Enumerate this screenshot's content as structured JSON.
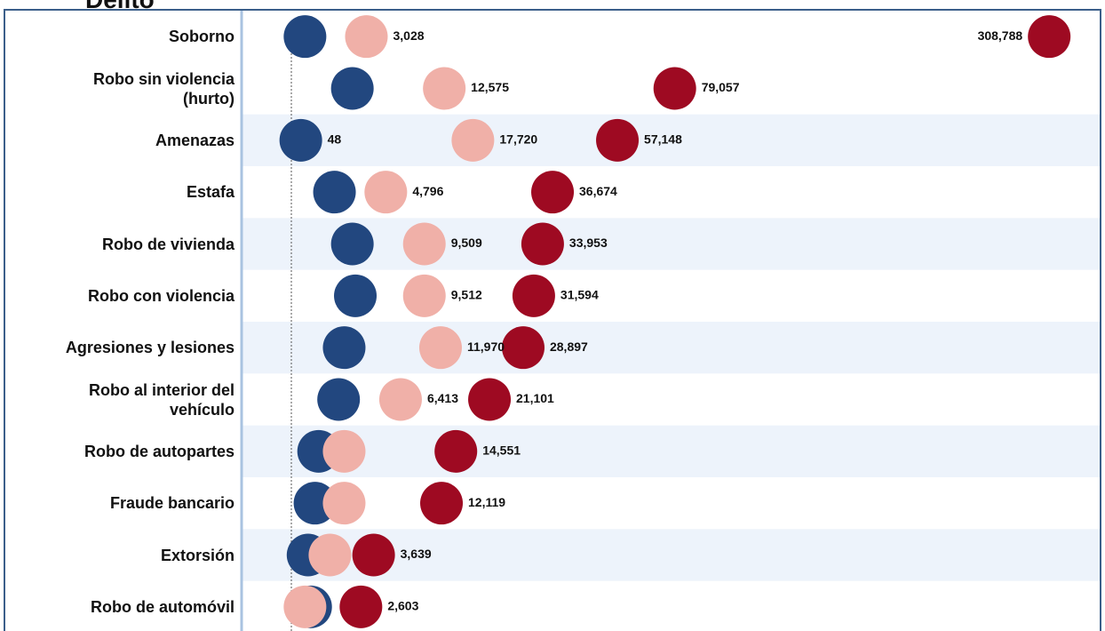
{
  "chart_data": {
    "type": "dot",
    "title": "Delito",
    "categories": [
      "Soborno",
      "Robo sin violencia\n(hurto)",
      "Amenazas",
      "Estafa",
      "Robo de vivienda",
      "Robo con violencia",
      "Agresiones y lesiones",
      "Robo al interior del\nvehículo",
      "Robo de autopartes",
      "Fraude bancario",
      "Extorsión",
      "Robo de automóvil"
    ],
    "x_scale": "sqrt",
    "xlim": [
      0,
      330000
    ],
    "series": [
      {
        "color": "#22477f",
        "values": [
          100,
          2000,
          48,
          1000,
          2000,
          2200,
          1500,
          1200,
          400,
          300,
          150,
          200
        ],
        "value_labels": [
          null,
          null,
          "48",
          null,
          null,
          null,
          null,
          null,
          null,
          null,
          null,
          null
        ]
      },
      {
        "color": "#f0b0a8",
        "values": [
          3028,
          12575,
          17720,
          4796,
          9509,
          9512,
          11970,
          6413,
          1500,
          1500,
          800,
          100
        ],
        "value_labels": [
          "3,028",
          "12,575",
          "17,720",
          "4,796",
          "9,509",
          "9,512",
          "11,970",
          "6,413",
          null,
          null,
          null,
          null
        ]
      },
      {
        "color": "#9e0a22",
        "values": [
          308788,
          79057,
          57148,
          36674,
          33953,
          31594,
          28897,
          21101,
          14551,
          12119,
          3639,
          2603
        ],
        "value_labels": [
          "308,788",
          "79,057",
          "57,148",
          "36,674",
          "33,953",
          "31,594",
          "28,897",
          "21,101",
          "14,551",
          "12,119",
          "3,639",
          "2,603"
        ]
      }
    ],
    "banded_rows": true
  }
}
